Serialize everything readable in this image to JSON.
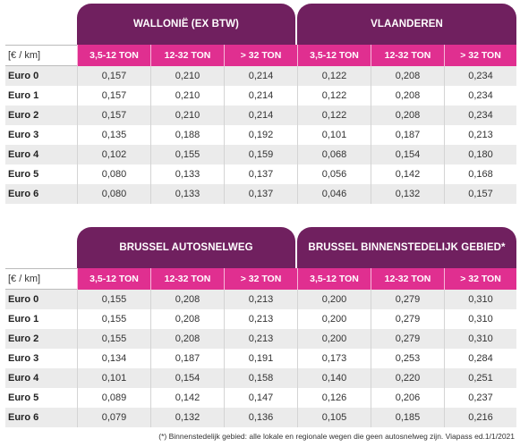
{
  "unit_label": "[€ / km]",
  "columns": [
    "3,5-12 TON",
    "12-32 TON",
    "> 32 TON"
  ],
  "tables": [
    {
      "regions": [
        "WALLONIË (EX BTW)",
        "VLAANDEREN"
      ],
      "rows": [
        {
          "label": "Euro 0",
          "values": [
            "0,157",
            "0,210",
            "0,214",
            "0,122",
            "0,208",
            "0,234"
          ]
        },
        {
          "label": "Euro 1",
          "values": [
            "0,157",
            "0,210",
            "0,214",
            "0,122",
            "0,208",
            "0,234"
          ]
        },
        {
          "label": "Euro 2",
          "values": [
            "0,157",
            "0,210",
            "0,214",
            "0,122",
            "0,208",
            "0,234"
          ]
        },
        {
          "label": "Euro 3",
          "values": [
            "0,135",
            "0,188",
            "0,192",
            "0,101",
            "0,187",
            "0,213"
          ]
        },
        {
          "label": "Euro 4",
          "values": [
            "0,102",
            "0,155",
            "0,159",
            "0,068",
            "0,154",
            "0,180"
          ]
        },
        {
          "label": "Euro 5",
          "values": [
            "0,080",
            "0,133",
            "0,137",
            "0,056",
            "0,142",
            "0,168"
          ]
        },
        {
          "label": "Euro 6",
          "values": [
            "0,080",
            "0,133",
            "0,137",
            "0,046",
            "0,132",
            "0,157"
          ]
        }
      ]
    },
    {
      "regions": [
        "BRUSSEL AUTOSNELWEG",
        "BRUSSEL BINNENSTEDELIJK GEBIED*"
      ],
      "rows": [
        {
          "label": "Euro 0",
          "values": [
            "0,155",
            "0,208",
            "0,213",
            "0,200",
            "0,279",
            "0,310"
          ]
        },
        {
          "label": "Euro 1",
          "values": [
            "0,155",
            "0,208",
            "0,213",
            "0,200",
            "0,279",
            "0,310"
          ]
        },
        {
          "label": "Euro 2",
          "values": [
            "0,155",
            "0,208",
            "0,213",
            "0,200",
            "0,279",
            "0,310"
          ]
        },
        {
          "label": "Euro 3",
          "values": [
            "0,134",
            "0,187",
            "0,191",
            "0,173",
            "0,253",
            "0,284"
          ]
        },
        {
          "label": "Euro 4",
          "values": [
            "0,101",
            "0,154",
            "0,158",
            "0,140",
            "0,220",
            "0,251"
          ]
        },
        {
          "label": "Euro 5",
          "values": [
            "0,089",
            "0,142",
            "0,147",
            "0,126",
            "0,206",
            "0,237"
          ]
        },
        {
          "label": "Euro 6",
          "values": [
            "0,079",
            "0,132",
            "0,136",
            "0,105",
            "0,185",
            "0,216"
          ]
        }
      ]
    }
  ],
  "footnote": "(*) Binnenstedelijk gebied: alle lokale en regionale wegen die geen autosnelweg zijn. Viapass ed.1/1/2021",
  "colors": {
    "header_purple": "#70205f",
    "column_pink": "#e02f90",
    "row_stripe": "#ebebeb"
  }
}
